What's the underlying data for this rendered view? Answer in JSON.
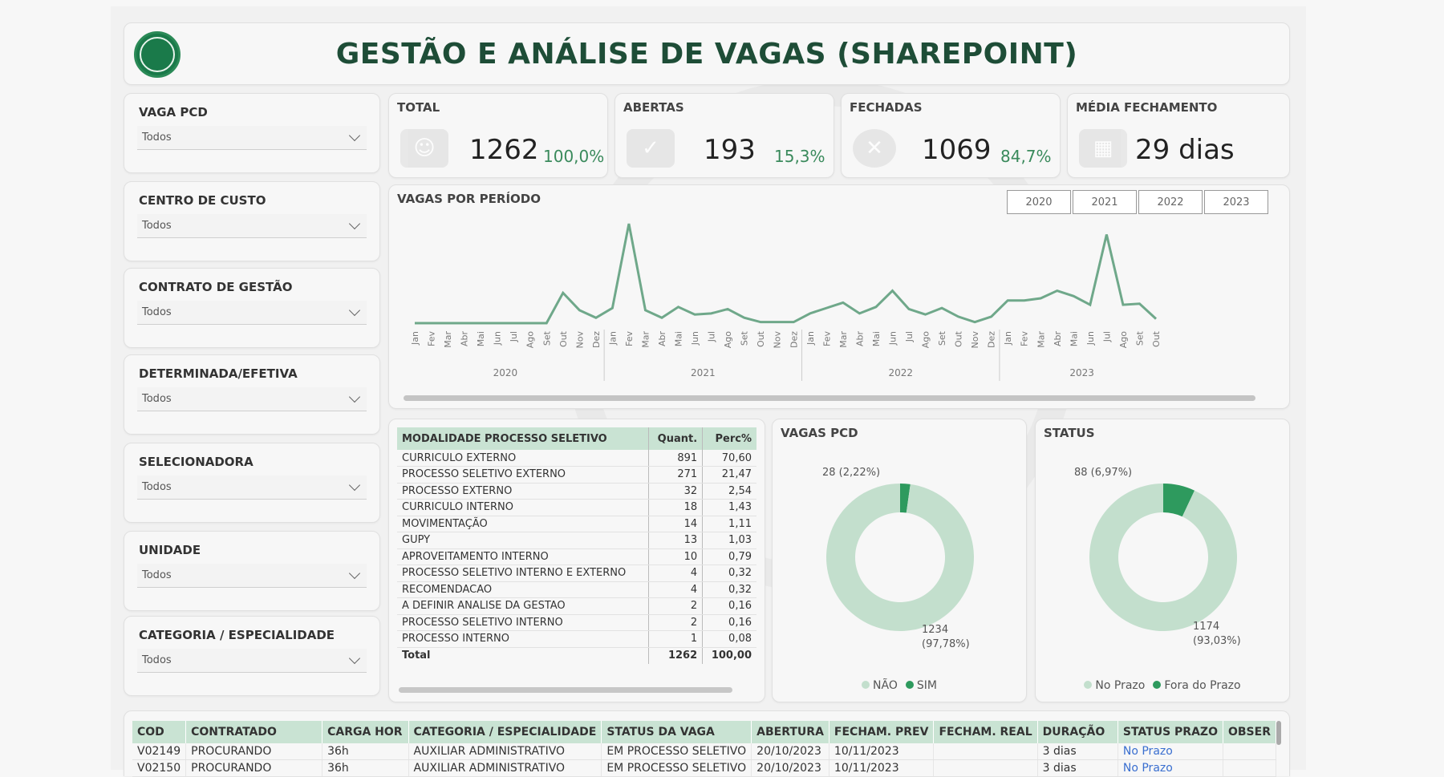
{
  "header": {
    "title": "GESTÃO E ANÁLISE DE VAGAS (SHAREPOINT)",
    "logo": "sbdm-logo"
  },
  "slicers": [
    {
      "label": "VAGA PCD",
      "value": "Todos"
    },
    {
      "label": "CENTRO DE CUSTO",
      "value": "Todos"
    },
    {
      "label": "CONTRATO DE GESTÃO",
      "value": "Todos"
    },
    {
      "label": "DETERMINADA/EFETIVA",
      "value": "Todos"
    },
    {
      "label": "SELECIONADORA",
      "value": "Todos"
    },
    {
      "label": "UNIDADE",
      "value": "Todos"
    },
    {
      "label": "CATEGORIA / ESPECIALIDADE",
      "value": "Todos"
    }
  ],
  "kpis": {
    "total": {
      "label": "TOTAL",
      "value": "1262",
      "pct": "100,0%",
      "icon": "people-icon"
    },
    "abertas": {
      "label": "ABERTAS",
      "value": "193",
      "pct": "15,3%",
      "icon": "briefcase-check-icon"
    },
    "fechadas": {
      "label": "FECHADAS",
      "value": "1069",
      "pct": "84,7%",
      "icon": "x-circle-icon"
    },
    "media": {
      "label": "MÉDIA FECHAMENTO",
      "value": "29 dias",
      "icon": "calendar-icon"
    }
  },
  "chart_data": [
    {
      "type": "line",
      "title": "VAGAS POR PERÍODO",
      "year_buttons": [
        "2020",
        "2021",
        "2022",
        "2023"
      ],
      "month_labels": [
        "Jan",
        "Fev",
        "Mar",
        "Abr",
        "Mai",
        "Jun",
        "Jul",
        "Ago",
        "Set",
        "Out",
        "Nov",
        "Dez"
      ],
      "years": [
        "2020",
        "2021",
        "2022",
        "2023"
      ],
      "x_last_month_2023": "Out",
      "values": [
        0,
        0,
        0,
        0,
        0,
        0,
        0,
        0,
        0,
        28,
        12,
        5,
        14,
        92,
        12,
        5,
        15,
        8,
        9,
        13,
        5,
        1,
        1,
        1,
        9,
        14,
        19,
        9,
        15,
        30,
        13,
        8,
        14,
        6,
        1,
        6,
        21,
        21,
        23,
        30,
        25,
        17,
        82,
        17,
        18,
        4
      ],
      "line_color": "#6fa88a"
    },
    {
      "type": "pie",
      "title": "VAGAS PCD",
      "categories": [
        "NÃO",
        "SIM"
      ],
      "values": [
        1234,
        28
      ],
      "labels": [
        "1234 (97,78%)",
        "28 (2,22%)"
      ],
      "colors": [
        "#c3dfcd",
        "#2e9a5e"
      ]
    },
    {
      "type": "pie",
      "title": "STATUS",
      "categories": [
        "No Prazo",
        "Fora do Prazo"
      ],
      "values": [
        1174,
        88
      ],
      "labels": [
        "1174 (93,03%)",
        "88 (6,97%)"
      ],
      "colors": [
        "#c3dfcd",
        "#2e9a5e"
      ]
    },
    {
      "type": "table",
      "title": "MODALIDADE PROCESSO SELETIVO",
      "columns": [
        "MODALIDADE PROCESSO SELETIVO",
        "Quant.",
        "Perc%"
      ],
      "rows": [
        [
          "CURRICULO EXTERNO",
          "891",
          "70,60"
        ],
        [
          "PROCESSO SELETIVO EXTERNO",
          "271",
          "21,47"
        ],
        [
          "PROCESSO EXTERNO",
          "32",
          "2,54"
        ],
        [
          "CURRICULO INTERNO",
          "18",
          "1,43"
        ],
        [
          "MOVIMENTAÇÃO",
          "14",
          "1,11"
        ],
        [
          "GUPY",
          "13",
          "1,03"
        ],
        [
          "APROVEITAMENTO INTERNO",
          "10",
          "0,79"
        ],
        [
          "PROCESSO SELETIVO INTERNO E EXTERNO",
          "4",
          "0,32"
        ],
        [
          "RECOMENDACAO",
          "4",
          "0,32"
        ],
        [
          "A DEFINIR ANALISE DA GESTAO",
          "2",
          "0,16"
        ],
        [
          "PROCESSO SELETIVO INTERNO",
          "2",
          "0,16"
        ],
        [
          "PROCESSO INTERNO",
          "1",
          "0,08"
        ]
      ],
      "total": [
        "Total",
        "1262",
        "100,00"
      ]
    }
  ],
  "detail": {
    "columns": [
      "COD",
      "CONTRATADO",
      "CARGA HOR",
      "CATEGORIA / ESPECIALIDADE",
      "STATUS DA VAGA",
      "ABERTURA",
      "FECHAM. PREV",
      "FECHAM. REAL",
      "DURAÇÃO",
      "STATUS PRAZO",
      "OBSER"
    ],
    "rows": [
      [
        "V02149",
        "PROCURANDO",
        "36h",
        "AUXILIAR ADMINISTRATIVO",
        "EM PROCESSO SELETIVO",
        "20/10/2023",
        "10/11/2023",
        "",
        "3 dias",
        "No Prazo",
        ""
      ],
      [
        "V02150",
        "PROCURANDO",
        "36h",
        "AUXILIAR ADMINISTRATIVO",
        "EM PROCESSO SELETIVO",
        "20/10/2023",
        "10/11/2023",
        "",
        "3 dias",
        "No Prazo",
        ""
      ]
    ]
  }
}
